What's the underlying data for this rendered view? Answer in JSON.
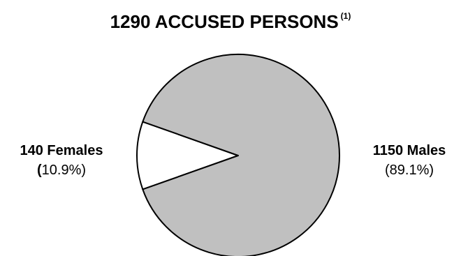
{
  "chart_data": {
    "type": "pie",
    "title": "1290 ACCUSED PERSONS",
    "title_note": "(1)",
    "slices": [
      {
        "label": "140 Females",
        "value": 140,
        "percent_label": "10.9%",
        "color": "#ffffff"
      },
      {
        "label": "1150 Males",
        "value": 1150,
        "percent_label": "89.1%",
        "color": "#c0c0c0"
      }
    ]
  }
}
